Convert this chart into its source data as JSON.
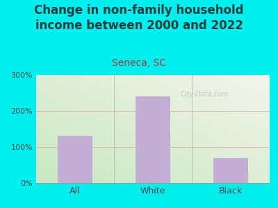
{
  "title": "Change in non-family household\nincome between 2000 and 2022",
  "subtitle": "Seneca, SC",
  "categories": [
    "All",
    "White",
    "Black"
  ],
  "values": [
    130,
    240,
    70
  ],
  "bar_color": "#c4aed4",
  "bar_width": 0.45,
  "ylim": [
    0,
    300
  ],
  "yticks": [
    0,
    100,
    200,
    300
  ],
  "ytick_labels": [
    "0%",
    "100%",
    "200%",
    "300%"
  ],
  "bg_color": "#00efef",
  "plot_bg_top_left": "#c8e8c0",
  "plot_bg_bottom_right": "#f4f4ec",
  "title_fontsize": 12,
  "subtitle_fontsize": 10,
  "subtitle_color": "#b03838",
  "title_color": "#1a3a3a",
  "axis_label_color": "#444444",
  "grid_color_100": "#e8b0b0",
  "grid_color_200": "#e8b0b0",
  "watermark": "City-Data.com",
  "divider_color": "#aaccaa"
}
